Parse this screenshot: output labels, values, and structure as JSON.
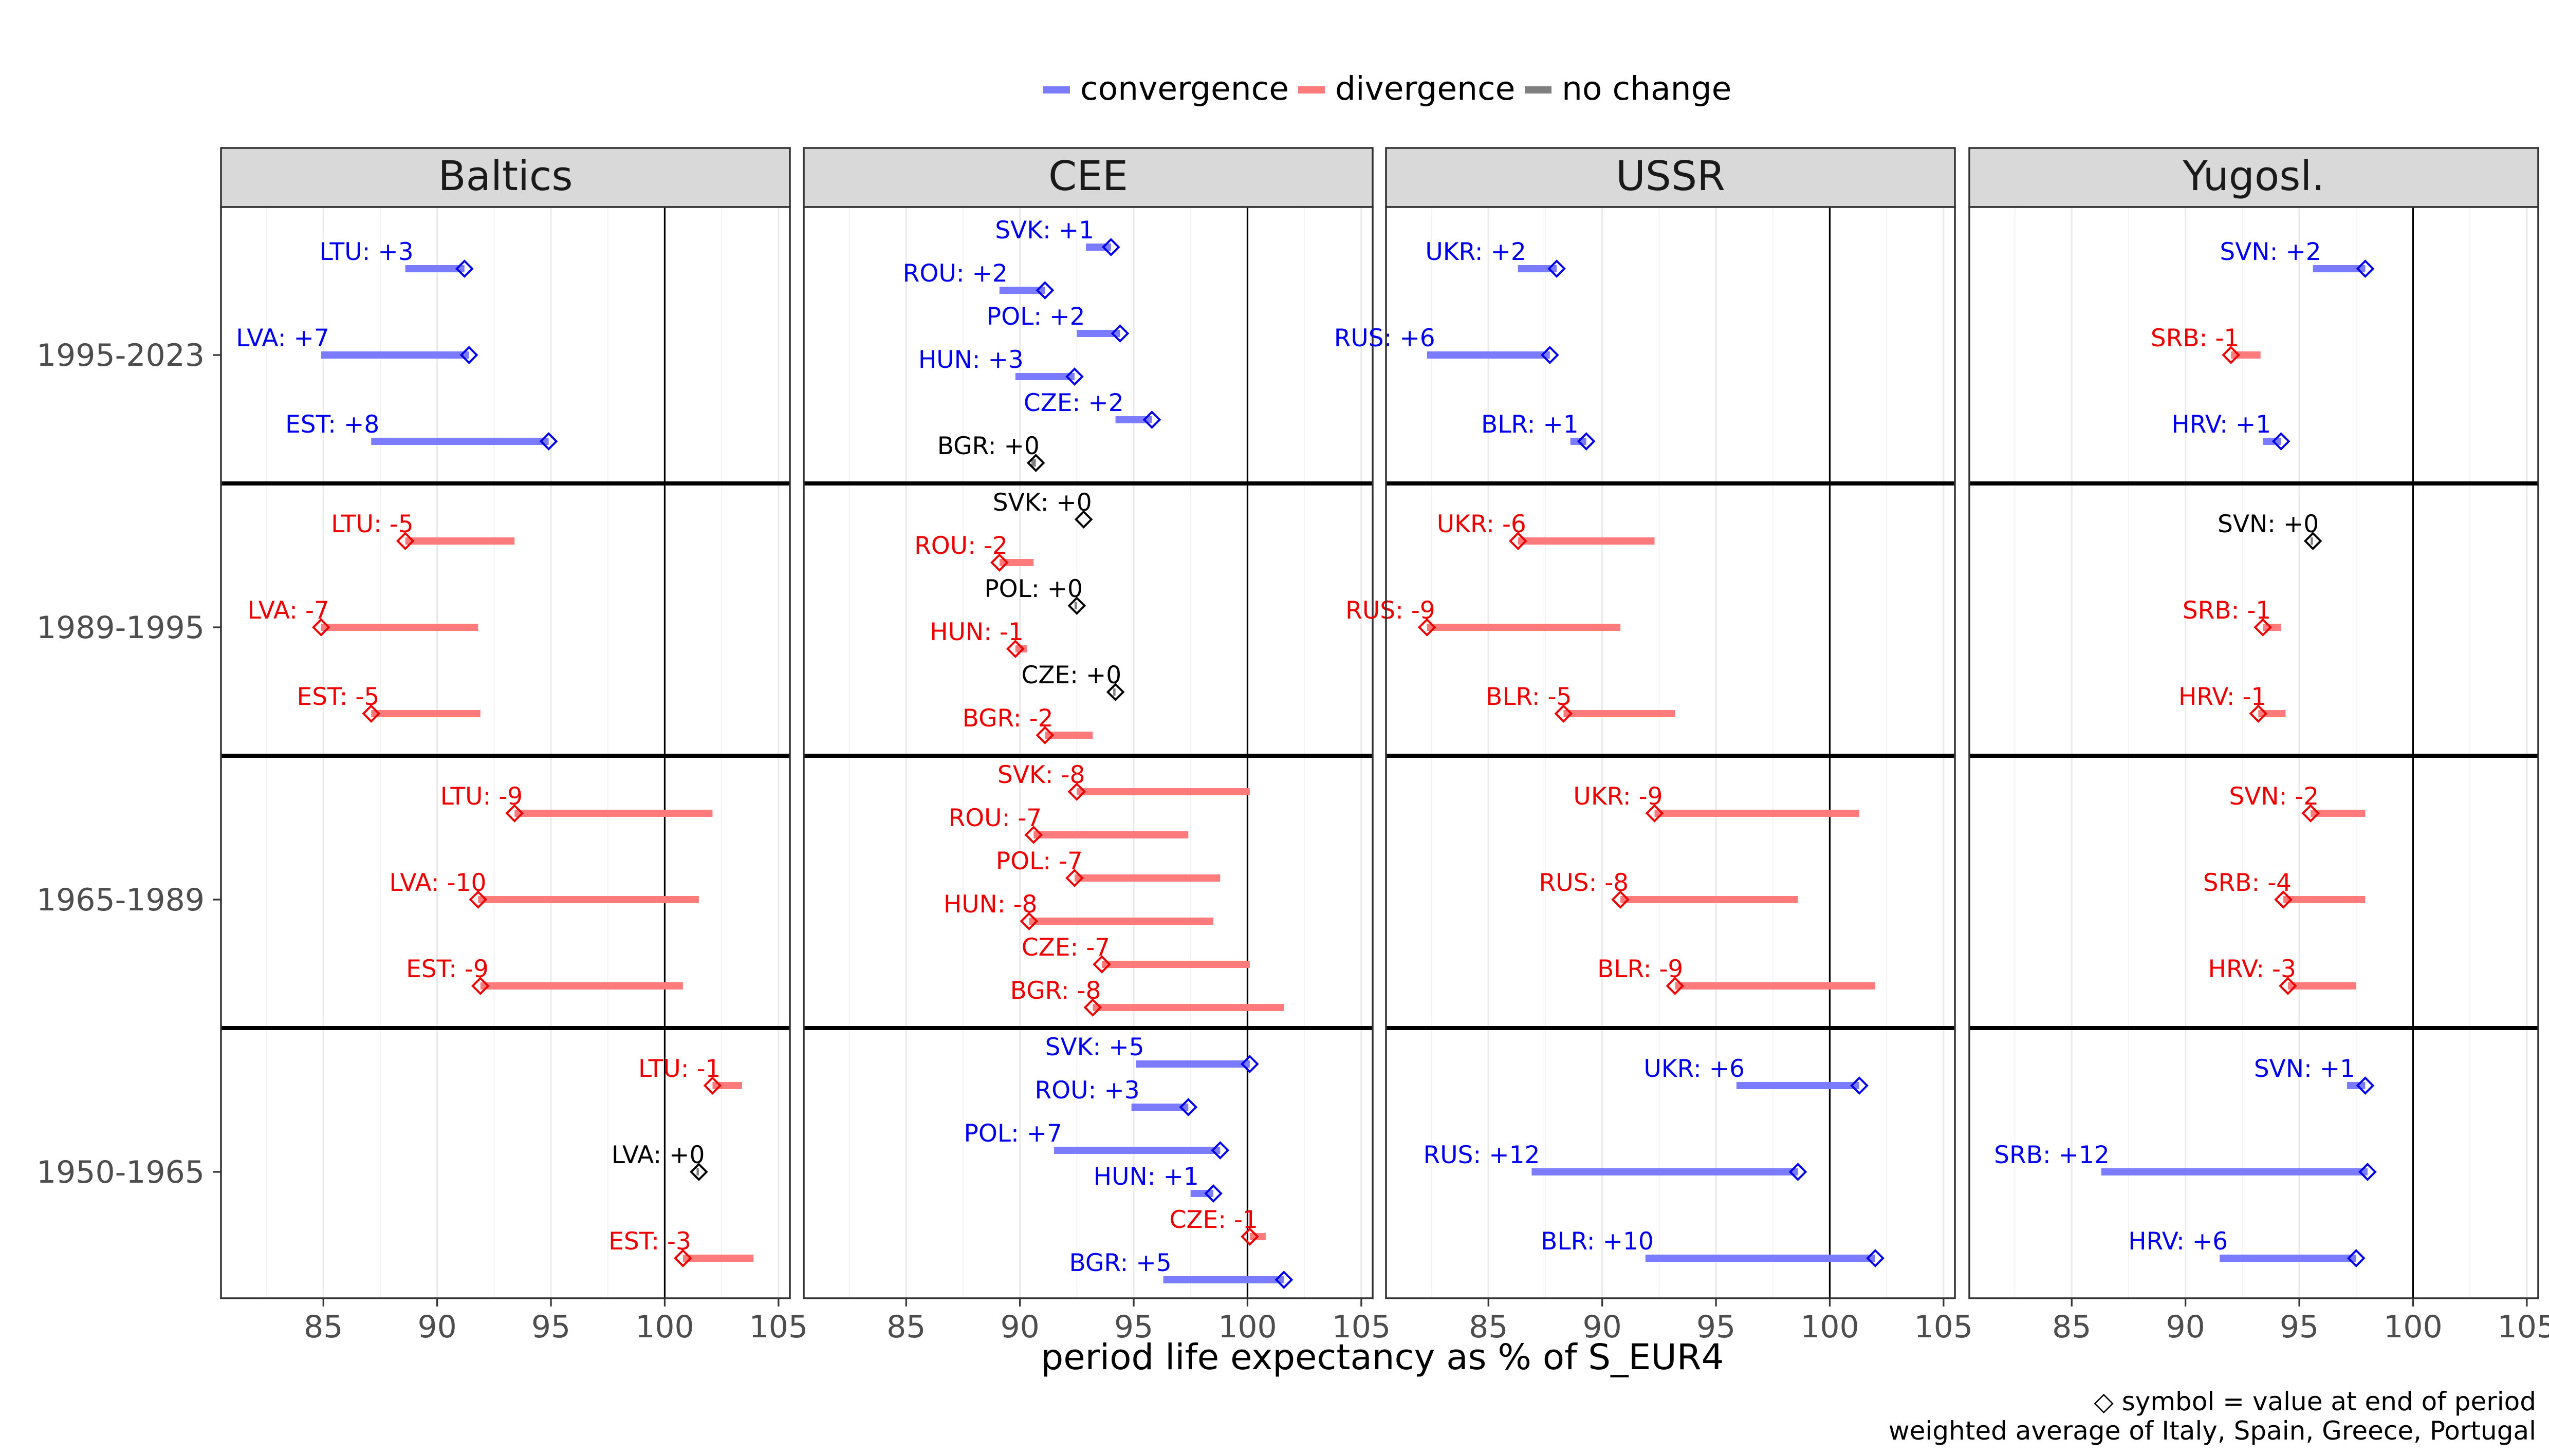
{
  "chart_data": {
    "type": "dumbbell",
    "xlabel": "period life expectancy as % of S_EUR4",
    "xlim": [
      80.5,
      105.5
    ],
    "xticks": [
      85,
      90,
      95,
      100,
      105
    ],
    "reference_x": 100,
    "period_order": [
      "1995-2023",
      "1989-1995",
      "1965-1989",
      "1950-1965"
    ],
    "legend": {
      "position": "top",
      "entries": [
        {
          "key": "convergence",
          "label": "convergence",
          "color": "#7b7bff"
        },
        {
          "key": "divergence",
          "label": "divergence",
          "color": "#ff7b7b"
        },
        {
          "key": "nochange",
          "label": "no change",
          "color": "#7f7f7f"
        }
      ]
    },
    "label_colors": {
      "convergence": "#0000ee",
      "divergence": "#ee0000",
      "nochange": "#000000"
    },
    "captions": [
      "◇ symbol = value at end of period",
      "weighted average of Italy, Spain, Greece, Portugal"
    ],
    "panels": [
      {
        "title": "Baltics",
        "rows": [
          {
            "period": "1995-2023",
            "country": "LTU",
            "change": "+3",
            "start": 88.6,
            "end": 91.2,
            "status": "convergence"
          },
          {
            "period": "1995-2023",
            "country": "LVA",
            "change": "+7",
            "start": 84.9,
            "end": 91.4,
            "status": "convergence"
          },
          {
            "period": "1995-2023",
            "country": "EST",
            "change": "+8",
            "start": 87.1,
            "end": 94.9,
            "status": "convergence"
          },
          {
            "period": "1989-1995",
            "country": "LTU",
            "change": "-5",
            "start": 93.4,
            "end": 88.6,
            "status": "divergence"
          },
          {
            "period": "1989-1995",
            "country": "LVA",
            "change": "-7",
            "start": 91.8,
            "end": 84.9,
            "status": "divergence"
          },
          {
            "period": "1989-1995",
            "country": "EST",
            "change": "-5",
            "start": 91.9,
            "end": 87.1,
            "status": "divergence"
          },
          {
            "period": "1965-1989",
            "country": "LTU",
            "change": "-9",
            "start": 102.1,
            "end": 93.4,
            "status": "divergence"
          },
          {
            "period": "1965-1989",
            "country": "LVA",
            "change": "-10",
            "start": 101.5,
            "end": 91.8,
            "status": "divergence"
          },
          {
            "period": "1965-1989",
            "country": "EST",
            "change": "-9",
            "start": 100.8,
            "end": 91.9,
            "status": "divergence"
          },
          {
            "period": "1950-1965",
            "country": "LTU",
            "change": "-1",
            "start": 103.4,
            "end": 102.1,
            "status": "divergence"
          },
          {
            "period": "1950-1965",
            "country": "LVA",
            "change": "+0",
            "start": 101.4,
            "end": 101.5,
            "status": "nochange"
          },
          {
            "period": "1950-1965",
            "country": "EST",
            "change": "-3",
            "start": 103.9,
            "end": 100.8,
            "status": "divergence"
          }
        ]
      },
      {
        "title": "CEE",
        "rows": [
          {
            "period": "1995-2023",
            "country": "SVK",
            "change": "+1",
            "start": 92.9,
            "end": 94.0,
            "status": "convergence"
          },
          {
            "period": "1995-2023",
            "country": "ROU",
            "change": "+2",
            "start": 89.1,
            "end": 91.1,
            "status": "convergence"
          },
          {
            "period": "1995-2023",
            "country": "POL",
            "change": "+2",
            "start": 92.5,
            "end": 94.4,
            "status": "convergence"
          },
          {
            "period": "1995-2023",
            "country": "HUN",
            "change": "+3",
            "start": 89.8,
            "end": 92.4,
            "status": "convergence"
          },
          {
            "period": "1995-2023",
            "country": "CZE",
            "change": "+2",
            "start": 94.2,
            "end": 95.8,
            "status": "convergence"
          },
          {
            "period": "1995-2023",
            "country": "BGR",
            "change": "+0",
            "start": 90.5,
            "end": 90.7,
            "status": "nochange"
          },
          {
            "period": "1989-1995",
            "country": "SVK",
            "change": "+0",
            "start": 92.8,
            "end": 92.8,
            "status": "nochange"
          },
          {
            "period": "1989-1995",
            "country": "ROU",
            "change": "-2",
            "start": 90.6,
            "end": 89.1,
            "status": "divergence"
          },
          {
            "period": "1989-1995",
            "country": "POL",
            "change": "+0",
            "start": 92.4,
            "end": 92.5,
            "status": "nochange"
          },
          {
            "period": "1989-1995",
            "country": "HUN",
            "change": "-1",
            "start": 90.3,
            "end": 89.8,
            "status": "divergence"
          },
          {
            "period": "1989-1995",
            "country": "CZE",
            "change": "+0",
            "start": 94.1,
            "end": 94.2,
            "status": "nochange"
          },
          {
            "period": "1989-1995",
            "country": "BGR",
            "change": "-2",
            "start": 93.2,
            "end": 91.1,
            "status": "divergence"
          },
          {
            "period": "1965-1989",
            "country": "SVK",
            "change": "-8",
            "start": 100.1,
            "end": 92.5,
            "status": "divergence"
          },
          {
            "period": "1965-1989",
            "country": "ROU",
            "change": "-7",
            "start": 97.4,
            "end": 90.6,
            "status": "divergence"
          },
          {
            "period": "1965-1989",
            "country": "POL",
            "change": "-7",
            "start": 98.8,
            "end": 92.4,
            "status": "divergence"
          },
          {
            "period": "1965-1989",
            "country": "HUN",
            "change": "-8",
            "start": 98.5,
            "end": 90.4,
            "status": "divergence"
          },
          {
            "period": "1965-1989",
            "country": "CZE",
            "change": "-7",
            "start": 100.1,
            "end": 93.6,
            "status": "divergence"
          },
          {
            "period": "1965-1989",
            "country": "BGR",
            "change": "-8",
            "start": 101.6,
            "end": 93.2,
            "status": "divergence"
          },
          {
            "period": "1950-1965",
            "country": "SVK",
            "change": "+5",
            "start": 95.1,
            "end": 100.1,
            "status": "convergence"
          },
          {
            "period": "1950-1965",
            "country": "ROU",
            "change": "+3",
            "start": 94.9,
            "end": 97.4,
            "status": "convergence"
          },
          {
            "period": "1950-1965",
            "country": "POL",
            "change": "+7",
            "start": 91.5,
            "end": 98.8,
            "status": "convergence"
          },
          {
            "period": "1950-1965",
            "country": "HUN",
            "change": "+1",
            "start": 97.5,
            "end": 98.5,
            "status": "convergence"
          },
          {
            "period": "1950-1965",
            "country": "CZE",
            "change": "-1",
            "start": 100.8,
            "end": 100.1,
            "status": "divergence"
          },
          {
            "period": "1950-1965",
            "country": "BGR",
            "change": "+5",
            "start": 96.3,
            "end": 101.6,
            "status": "convergence"
          }
        ]
      },
      {
        "title": "USSR",
        "rows": [
          {
            "period": "1995-2023",
            "country": "UKR",
            "change": "+2",
            "start": 86.3,
            "end": 88.0,
            "status": "convergence"
          },
          {
            "period": "1995-2023",
            "country": "RUS",
            "change": "+6",
            "start": 82.3,
            "end": 87.7,
            "status": "convergence"
          },
          {
            "period": "1995-2023",
            "country": "BLR",
            "change": "+1",
            "start": 88.6,
            "end": 89.3,
            "status": "convergence"
          },
          {
            "period": "1989-1995",
            "country": "UKR",
            "change": "-6",
            "start": 92.3,
            "end": 86.3,
            "status": "divergence"
          },
          {
            "period": "1989-1995",
            "country": "RUS",
            "change": "-9",
            "start": 90.8,
            "end": 82.3,
            "status": "divergence"
          },
          {
            "period": "1989-1995",
            "country": "BLR",
            "change": "-5",
            "start": 93.2,
            "end": 88.3,
            "status": "divergence"
          },
          {
            "period": "1965-1989",
            "country": "UKR",
            "change": "-9",
            "start": 101.3,
            "end": 92.3,
            "status": "divergence"
          },
          {
            "period": "1965-1989",
            "country": "RUS",
            "change": "-8",
            "start": 98.6,
            "end": 90.8,
            "status": "divergence"
          },
          {
            "period": "1965-1989",
            "country": "BLR",
            "change": "-9",
            "start": 102.0,
            "end": 93.2,
            "status": "divergence"
          },
          {
            "period": "1950-1965",
            "country": "UKR",
            "change": "+6",
            "start": 95.9,
            "end": 101.3,
            "status": "convergence"
          },
          {
            "period": "1950-1965",
            "country": "RUS",
            "change": "+12",
            "start": 86.9,
            "end": 98.6,
            "status": "convergence"
          },
          {
            "period": "1950-1965",
            "country": "BLR",
            "change": "+10",
            "start": 91.9,
            "end": 102.0,
            "status": "convergence"
          }
        ]
      },
      {
        "title": "Yugosl.",
        "rows": [
          {
            "period": "1995-2023",
            "country": "SVN",
            "change": "+2",
            "start": 95.6,
            "end": 97.9,
            "status": "convergence"
          },
          {
            "period": "1995-2023",
            "country": "SRB",
            "change": "-1",
            "start": 93.3,
            "end": 92.0,
            "status": "divergence"
          },
          {
            "period": "1995-2023",
            "country": "HRV",
            "change": "+1",
            "start": 93.4,
            "end": 94.2,
            "status": "convergence"
          },
          {
            "period": "1989-1995",
            "country": "SVN",
            "change": "+0",
            "start": 95.5,
            "end": 95.6,
            "status": "nochange"
          },
          {
            "period": "1989-1995",
            "country": "SRB",
            "change": "-1",
            "start": 94.2,
            "end": 93.4,
            "status": "divergence"
          },
          {
            "period": "1989-1995",
            "country": "HRV",
            "change": "-1",
            "start": 94.4,
            "end": 93.2,
            "status": "divergence"
          },
          {
            "period": "1965-1989",
            "country": "SVN",
            "change": "-2",
            "start": 97.9,
            "end": 95.5,
            "status": "divergence"
          },
          {
            "period": "1965-1989",
            "country": "SRB",
            "change": "-4",
            "start": 97.9,
            "end": 94.3,
            "status": "divergence"
          },
          {
            "period": "1965-1989",
            "country": "HRV",
            "change": "-3",
            "start": 97.5,
            "end": 94.5,
            "status": "divergence"
          },
          {
            "period": "1950-1965",
            "country": "SVN",
            "change": "+1",
            "start": 97.1,
            "end": 97.9,
            "status": "convergence"
          },
          {
            "period": "1950-1965",
            "country": "SRB",
            "change": "+12",
            "start": 86.3,
            "end": 98.0,
            "status": "convergence"
          },
          {
            "period": "1950-1965",
            "country": "HRV",
            "change": "+6",
            "start": 91.5,
            "end": 97.5,
            "status": "convergence"
          }
        ]
      }
    ]
  }
}
